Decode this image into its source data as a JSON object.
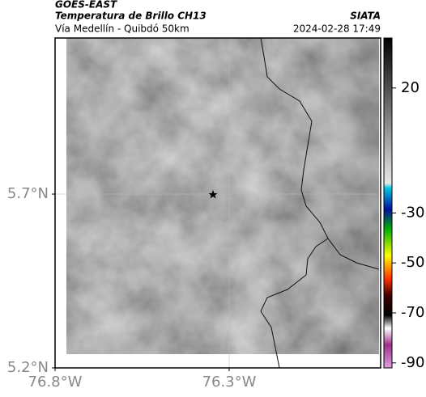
{
  "header": {
    "source": "GOES-EAST",
    "title": "Temperatura de Brillo CH13",
    "subtitle": "Vía Medellín - Quibdó 50km",
    "agency": "SIATA",
    "datetime": "2024-02-28 17:49"
  },
  "map": {
    "xlim": [
      -76.8,
      -75.865
    ],
    "ylim": [
      5.2,
      6.149
    ],
    "xticks": [
      {
        "value": -76.8,
        "label": "76.8°W"
      },
      {
        "value": -76.3,
        "label": "76.3°W"
      }
    ],
    "yticks": [
      {
        "value": 5.2,
        "label": "5.2°N"
      },
      {
        "value": 5.7,
        "label": "5.7°N"
      }
    ],
    "grid": true
  },
  "colorbar": {
    "clim": [
      -92,
      40
    ],
    "ticks": [
      20,
      -30,
      -50,
      -70,
      -90
    ]
  }
}
